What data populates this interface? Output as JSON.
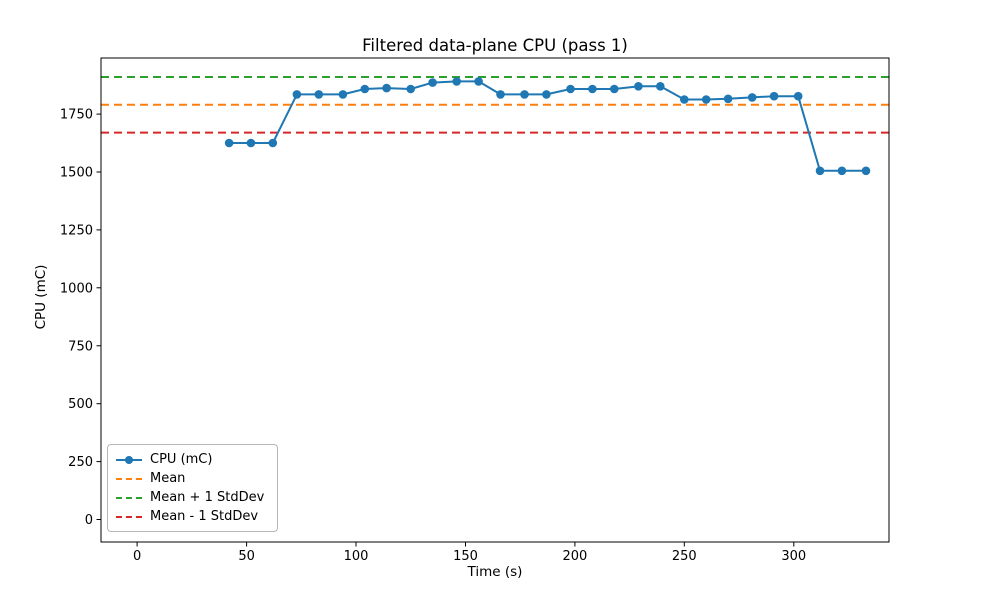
{
  "figure": {
    "title": "Filtered data-plane CPU (pass 1)",
    "xlabel": "Time (s)",
    "ylabel": "CPU (mC)",
    "background": "#ffffff"
  },
  "chart_data": {
    "type": "line",
    "title": "Filtered data-plane CPU (pass 1)",
    "xlabel": "Time (s)",
    "ylabel": "CPU (mC)",
    "xlim": [
      -16.5,
      343.5
    ],
    "ylim": [
      -97,
      1992
    ],
    "xticks": [
      0,
      50,
      100,
      150,
      200,
      250,
      300
    ],
    "yticks": [
      0,
      250,
      500,
      750,
      1000,
      1250,
      1500,
      1750
    ],
    "grid": false,
    "legend_position": "lower-left",
    "series": [
      {
        "name": "CPU (mC)",
        "color": "#1f77b4",
        "marker": "circle",
        "line_style": "solid",
        "x": [
          42,
          52,
          62,
          73,
          83,
          94,
          104,
          114,
          125,
          135,
          146,
          156,
          166,
          177,
          187,
          198,
          208,
          218,
          229,
          239,
          250,
          260,
          270,
          281,
          291,
          302,
          312,
          322,
          333
        ],
        "y": [
          1625,
          1625,
          1625,
          1835,
          1835,
          1835,
          1858,
          1862,
          1858,
          1886,
          1891,
          1891,
          1835,
          1835,
          1835,
          1858,
          1858,
          1858,
          1870,
          1870,
          1813,
          1813,
          1816,
          1822,
          1827,
          1827,
          1505,
          1505,
          1505
        ]
      }
    ],
    "hlines": [
      {
        "label": "Mean",
        "value": 1790,
        "color": "#ff7f0e",
        "line_style": "dashed"
      },
      {
        "label": "Mean + 1 StdDev",
        "value": 1910,
        "color": "#2ca02c",
        "line_style": "dashed"
      },
      {
        "label": "Mean - 1 StdDev",
        "value": 1670,
        "color": "#d62728",
        "line_style": "dashed"
      }
    ]
  },
  "legend": {
    "items": [
      {
        "label": "CPU (mC)",
        "color": "#1f77b4",
        "style": "solid-marker"
      },
      {
        "label": "Mean",
        "color": "#ff7f0e",
        "style": "dashed"
      },
      {
        "label": "Mean + 1 StdDev",
        "color": "#2ca02c",
        "style": "dashed"
      },
      {
        "label": "Mean - 1 StdDev",
        "color": "#d62728",
        "style": "dashed"
      }
    ]
  }
}
